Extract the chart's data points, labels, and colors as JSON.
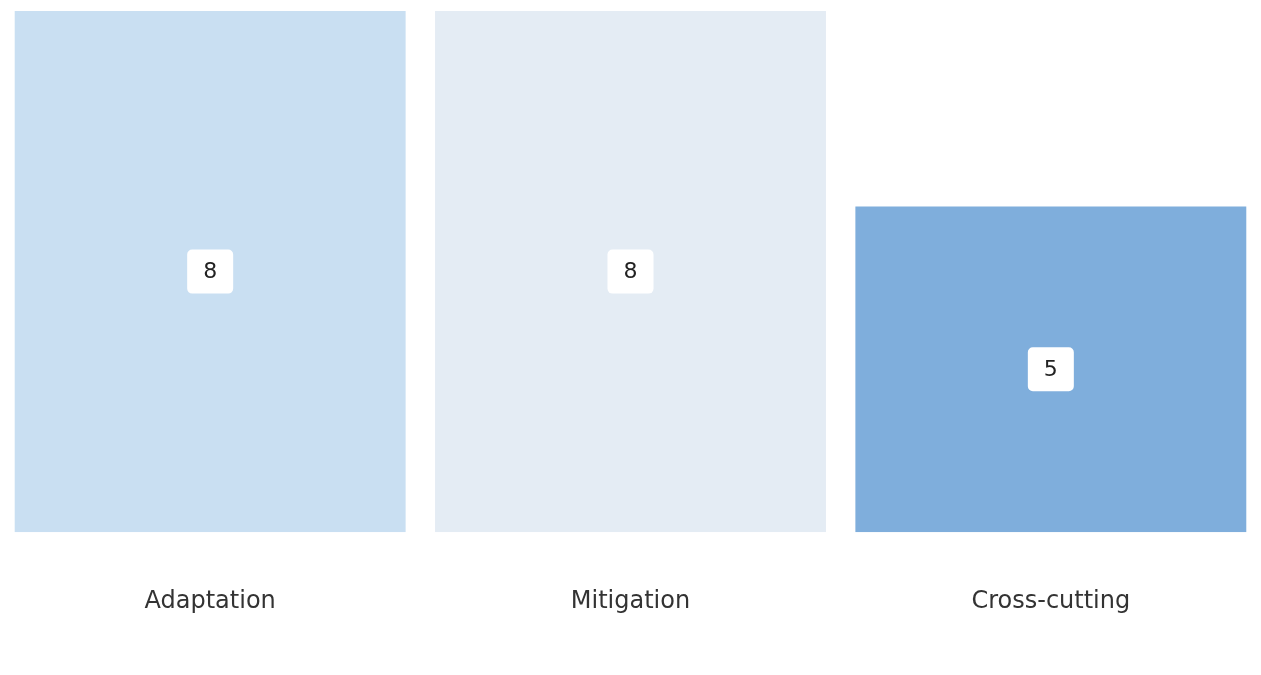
{
  "chart_data": {
    "type": "bar",
    "categories": [
      "Adaptation",
      "Mitigation",
      "Cross-cutting"
    ],
    "values": [
      8,
      8,
      5
    ],
    "colors": [
      "#c9dff2",
      "#e4ecf4",
      "#7faedc"
    ],
    "ylim": [
      0,
      8
    ],
    "data_labels": true,
    "grid": false,
    "legend": false
  }
}
